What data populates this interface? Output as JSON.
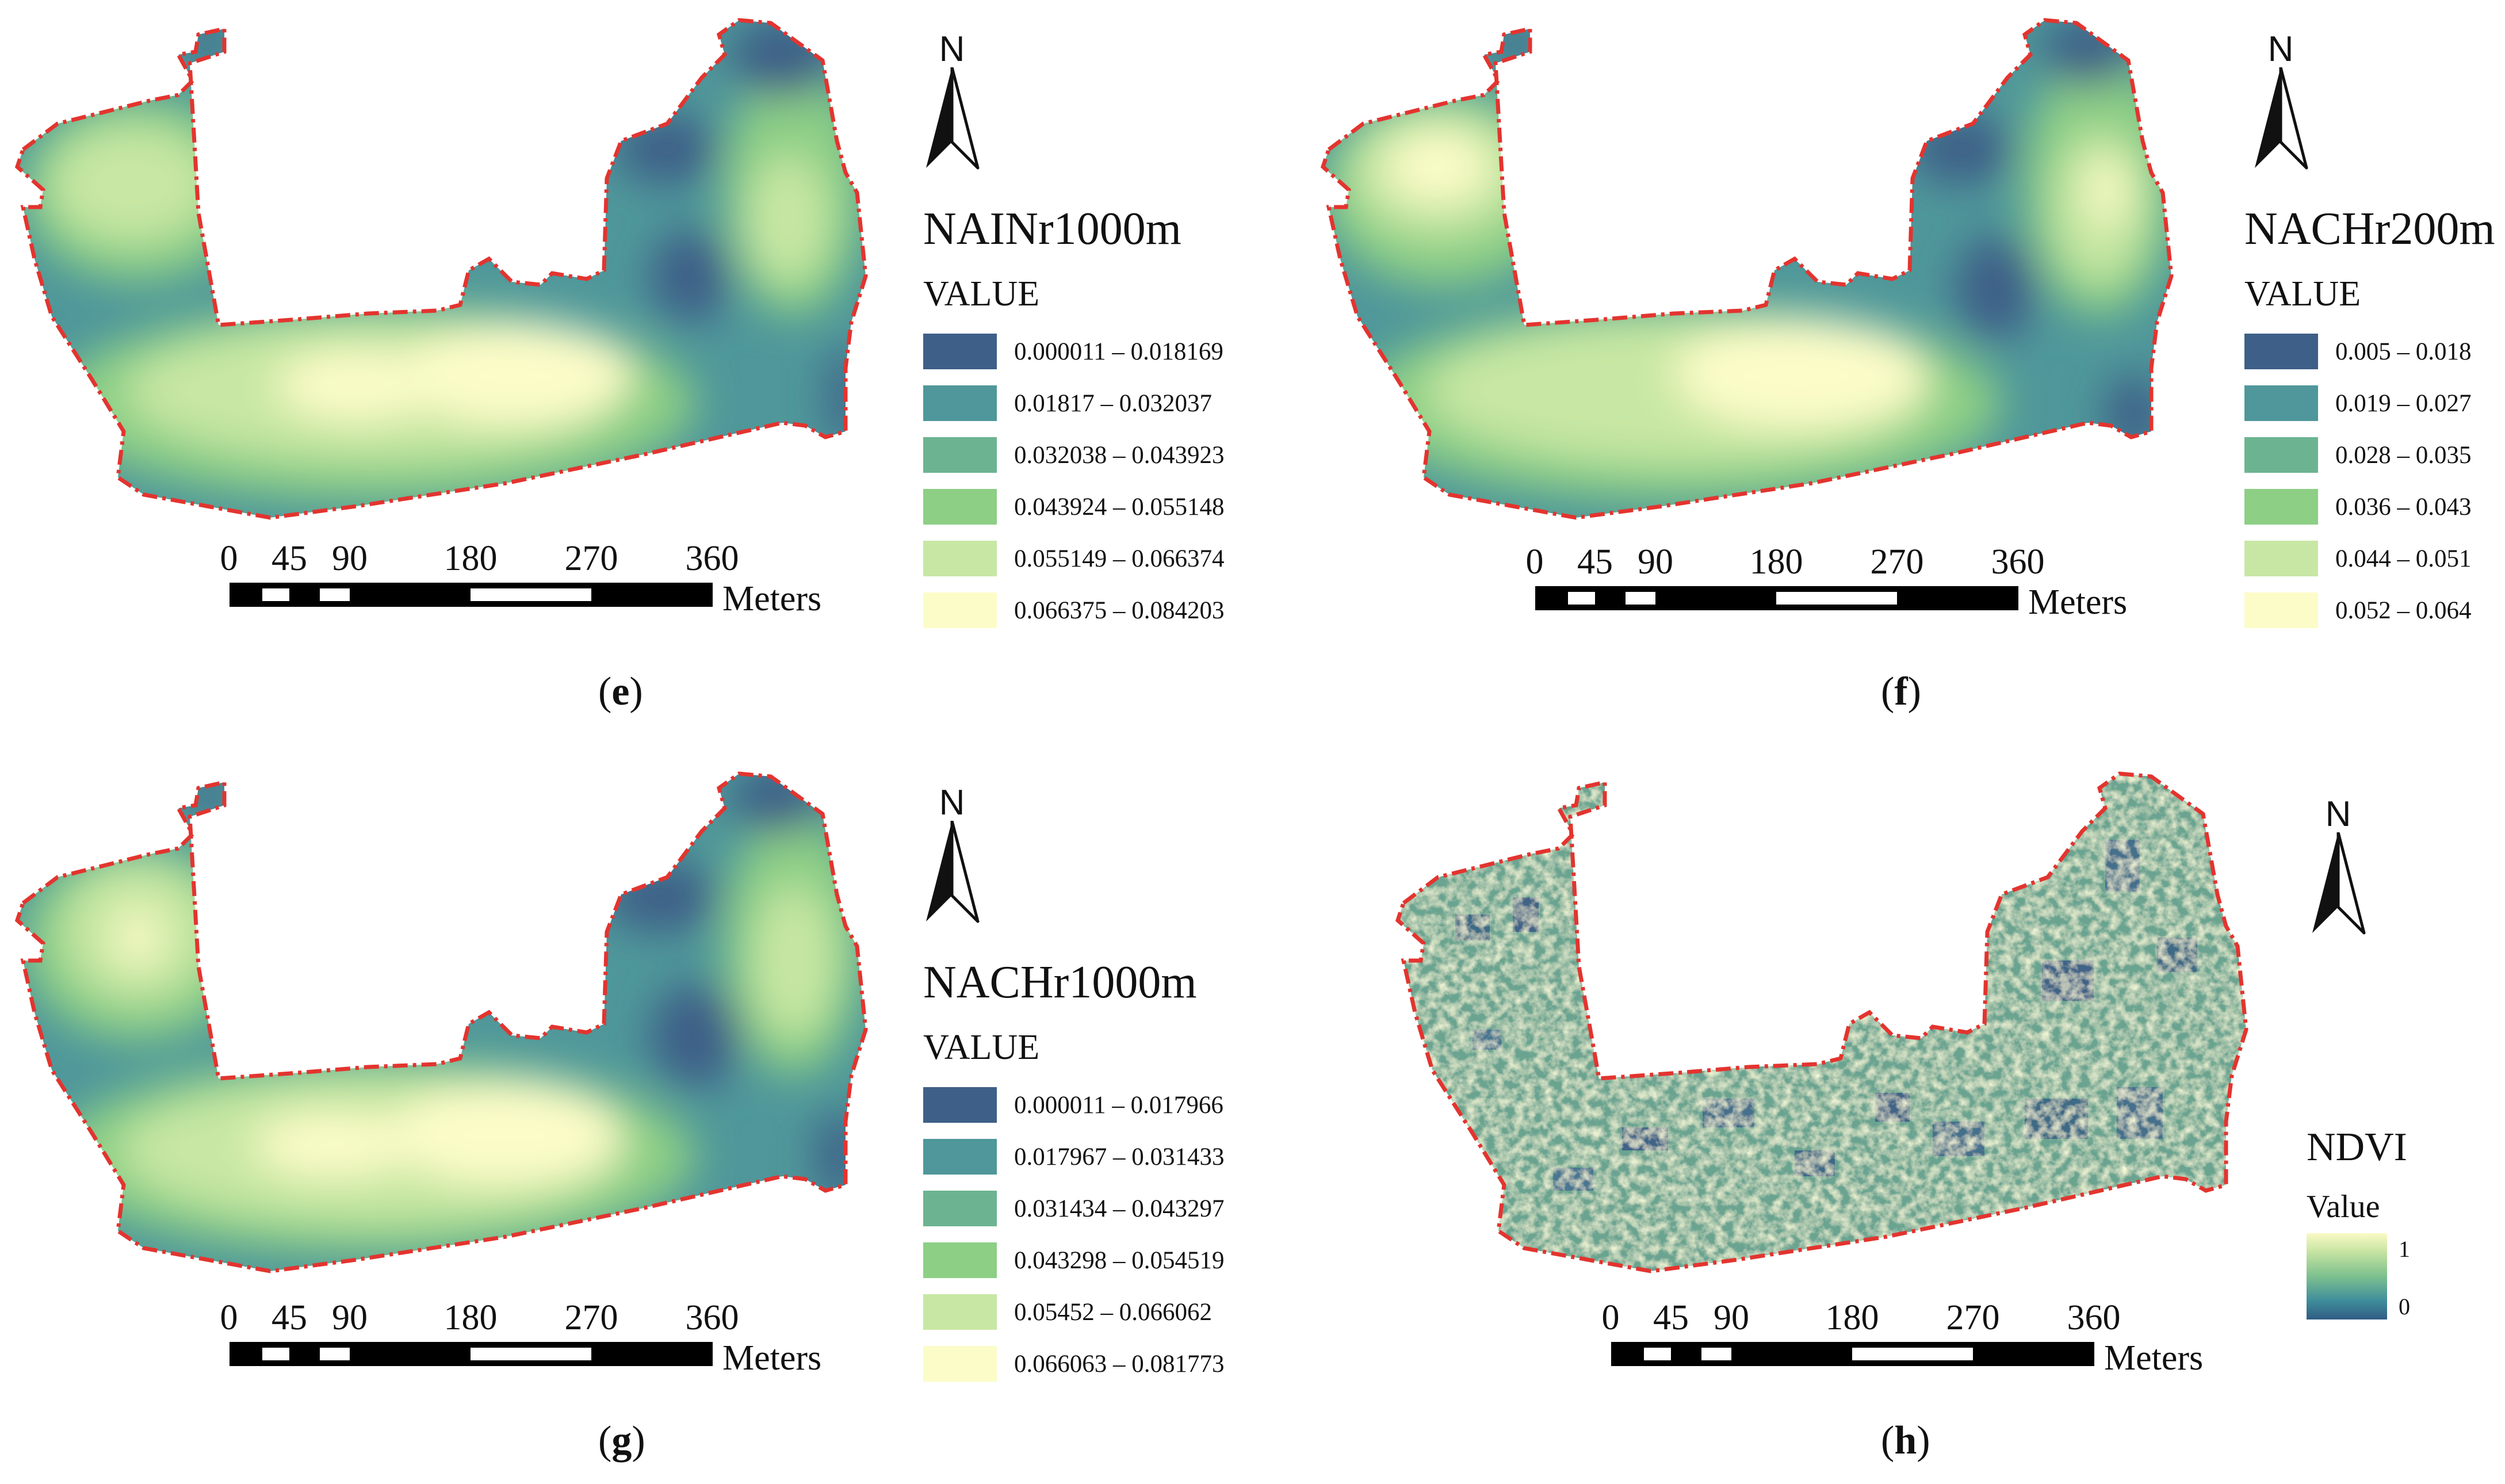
{
  "panels": [
    {
      "id": "e",
      "legend_title": "NAINr1000m",
      "legend_subtitle": "VALUE",
      "classes": [
        {
          "label": "0.000011 – 0.018169",
          "color": "#3e5f87"
        },
        {
          "label": "0.01817 – 0.032037",
          "color": "#4f979a"
        },
        {
          "label": "0.032038 – 0.043923",
          "color": "#6cb491"
        },
        {
          "label": "0.043924 – 0.055148",
          "color": "#8ccf85"
        },
        {
          "label": "0.055149 – 0.066374",
          "color": "#c8e7a4"
        },
        {
          "label": "0.066375 – 0.084203",
          "color": "#fcfcc8"
        }
      ]
    },
    {
      "id": "f",
      "legend_title": "NACHr200m",
      "legend_subtitle": "VALUE",
      "classes": [
        {
          "label": "0.005 – 0.018",
          "color": "#3e5f87"
        },
        {
          "label": "0.019 – 0.027",
          "color": "#4f979a"
        },
        {
          "label": "0.028 – 0.035",
          "color": "#6cb491"
        },
        {
          "label": "0.036 – 0.043",
          "color": "#8ccf85"
        },
        {
          "label": "0.044 – 0.051",
          "color": "#c8e7a4"
        },
        {
          "label": "0.052 – 0.064",
          "color": "#fcfcc8"
        }
      ]
    },
    {
      "id": "g",
      "legend_title": "NACHr1000m",
      "legend_subtitle": "VALUE",
      "classes": [
        {
          "label": "0.000011 – 0.017966",
          "color": "#3e5f87"
        },
        {
          "label": "0.017967 – 0.031433",
          "color": "#4f979a"
        },
        {
          "label": "0.031434 – 0.043297",
          "color": "#6cb491"
        },
        {
          "label": "0.043298 – 0.054519",
          "color": "#8ccf85"
        },
        {
          "label": "0.05452 – 0.066062",
          "color": "#c8e7a4"
        },
        {
          "label": "0.066063 – 0.081773",
          "color": "#fcfcc8"
        }
      ]
    },
    {
      "id": "h",
      "legend_title": "NDVI",
      "legend_subtitle": "Value",
      "ramp_high": "1",
      "ramp_low": "0"
    }
  ],
  "north_label": "N",
  "scale": {
    "ticks": [
      "0",
      "45",
      "90",
      "180",
      "270",
      "360"
    ],
    "tick_values": [
      0,
      45,
      90,
      180,
      270,
      360
    ],
    "units": "Meters"
  },
  "captions": {
    "e": {
      "open": "(",
      "letter": "e",
      "close": ")"
    },
    "f": {
      "open": "(",
      "letter": "f",
      "close": ")"
    },
    "g": {
      "open": "(",
      "letter": "g",
      "close": ")"
    },
    "h": {
      "open": "(",
      "letter": "h",
      "close": ")"
    }
  },
  "colors": {
    "boundary": "#e3342f",
    "dark_blue": "#3e5f87",
    "teal": "#4f979a",
    "light_yellow": "#fcfcc8"
  }
}
